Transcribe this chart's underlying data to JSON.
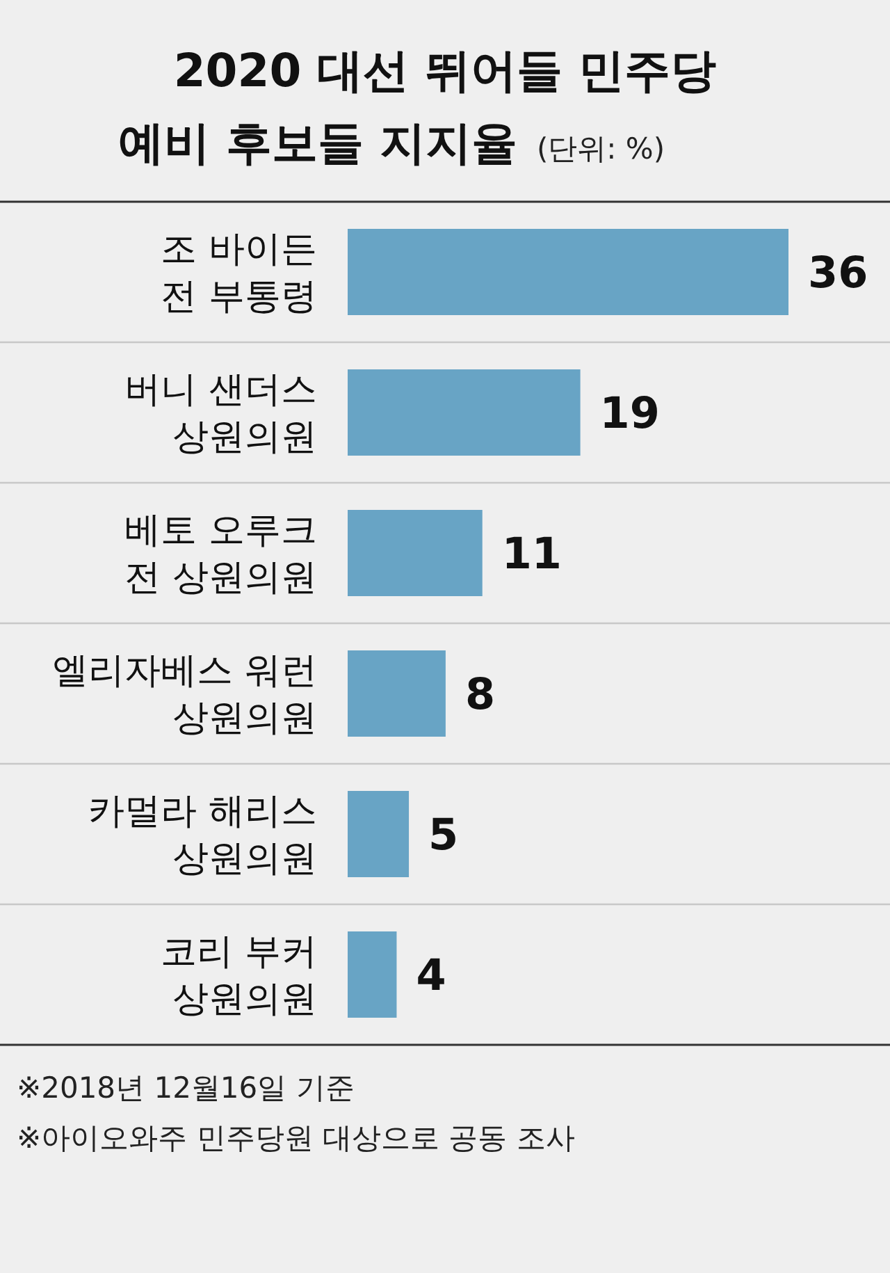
{
  "chart_data": {
    "type": "bar",
    "orientation": "horizontal",
    "title": "2020 대선 뛰어들 민주당\n예비 후보들 지지율",
    "subtitle": "(단위: %)",
    "categories": [
      "조 바이든\n전 부통령",
      "버니 샌더스\n상원의원",
      "베토 오루크\n전 상원의원",
      "엘리자베스 워런\n상원의원",
      "카멀라 해리스\n상원의원",
      "코리 부커\n상원의원"
    ],
    "values": [
      36,
      19,
      11,
      8,
      5,
      4
    ],
    "color": "#68a4c5",
    "data_labels": true,
    "annotations": [
      "※2018년 12월16일 기준",
      "※아이오와주 민주당원 대상으로 공동 조사"
    ]
  }
}
